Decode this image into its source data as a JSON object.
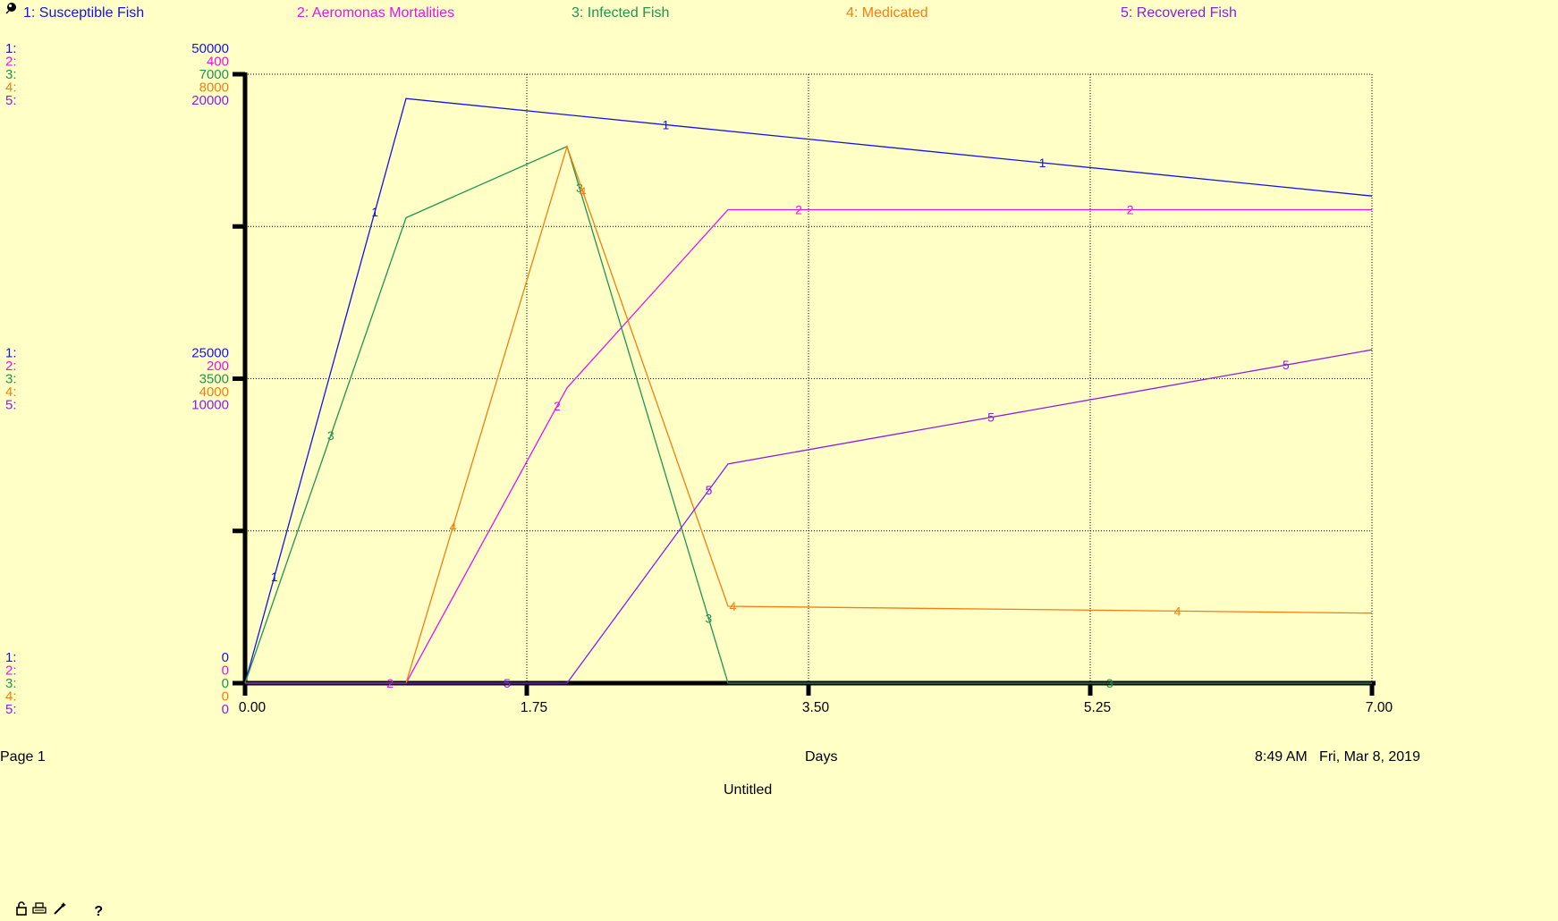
{
  "legend": [
    {
      "label": "1: Susceptible Fish",
      "color": "#1414E6"
    },
    {
      "label": "2: Aeromonas Mortalities",
      "color": "#E614E6"
    },
    {
      "label": "3: Infected Fish",
      "color": "#1E9650"
    },
    {
      "label": "4: Medicated",
      "color": "#F57D14"
    },
    {
      "label": "5: Recovered Fish",
      "color": "#8C1EE6"
    }
  ],
  "footer": {
    "page": "Page 1",
    "xlabel": "Days",
    "timestamp": "8:49 AM   Fri, Mar 8, 2019",
    "title": "Untitled"
  },
  "toolbar": {
    "icons": [
      "lock-icon",
      "print-icon",
      "wand-icon",
      "help-icon"
    ],
    "help_label": "?"
  },
  "chart_data": {
    "type": "line",
    "title": "Untitled",
    "xlabel": "Days",
    "xlim": [
      0,
      7
    ],
    "x_ticks": [
      "0.00",
      "1.75",
      "3.50",
      "5.25",
      "7.00"
    ],
    "grid": true,
    "legend_position": "top",
    "axis_scales": [
      {
        "series_index": "1:",
        "color": "#1414E6",
        "ticks": [
          "50000",
          "25000",
          "0"
        ]
      },
      {
        "series_index": "2:",
        "color": "#E614E6",
        "ticks": [
          "400",
          "200",
          "0"
        ]
      },
      {
        "series_index": "3:",
        "color": "#1E9650",
        "ticks": [
          "7000",
          "3500",
          "0"
        ]
      },
      {
        "series_index": "4:",
        "color": "#F57D14",
        "ticks": [
          "8000",
          "4000",
          "0"
        ]
      },
      {
        "series_index": "5:",
        "color": "#8C1EE6",
        "ticks": [
          "20000",
          "10000",
          "0"
        ]
      }
    ],
    "series": [
      {
        "name": "Susceptible Fish",
        "marker": "1",
        "color": "#1414E6",
        "ymax": 50000,
        "x": [
          0,
          1,
          7
        ],
        "values": [
          0,
          48000,
          40000
        ]
      },
      {
        "name": "Aeromonas Mortalities",
        "marker": "2",
        "color": "#E614E6",
        "ymax": 400,
        "x": [
          0,
          1,
          2,
          3,
          7
        ],
        "values": [
          0,
          0,
          194,
          311,
          311
        ]
      },
      {
        "name": "Infected Fish",
        "marker": "3",
        "color": "#1E9650",
        "ymax": 7000,
        "x": [
          0,
          1,
          2,
          3,
          7
        ],
        "values": [
          0,
          5350,
          6170,
          0,
          0
        ]
      },
      {
        "name": "Medicated",
        "marker": "4",
        "color": "#F57D14",
        "ymax": 8000,
        "x": [
          0,
          1,
          2,
          3,
          7
        ],
        "values": [
          0,
          0,
          7050,
          1010,
          920
        ]
      },
      {
        "name": "Recovered Fish",
        "marker": "5",
        "color": "#8C1EE6",
        "ymax": 20000,
        "x": [
          0,
          2,
          3,
          7
        ],
        "values": [
          0,
          0,
          7200,
          10950
        ]
      }
    ]
  }
}
